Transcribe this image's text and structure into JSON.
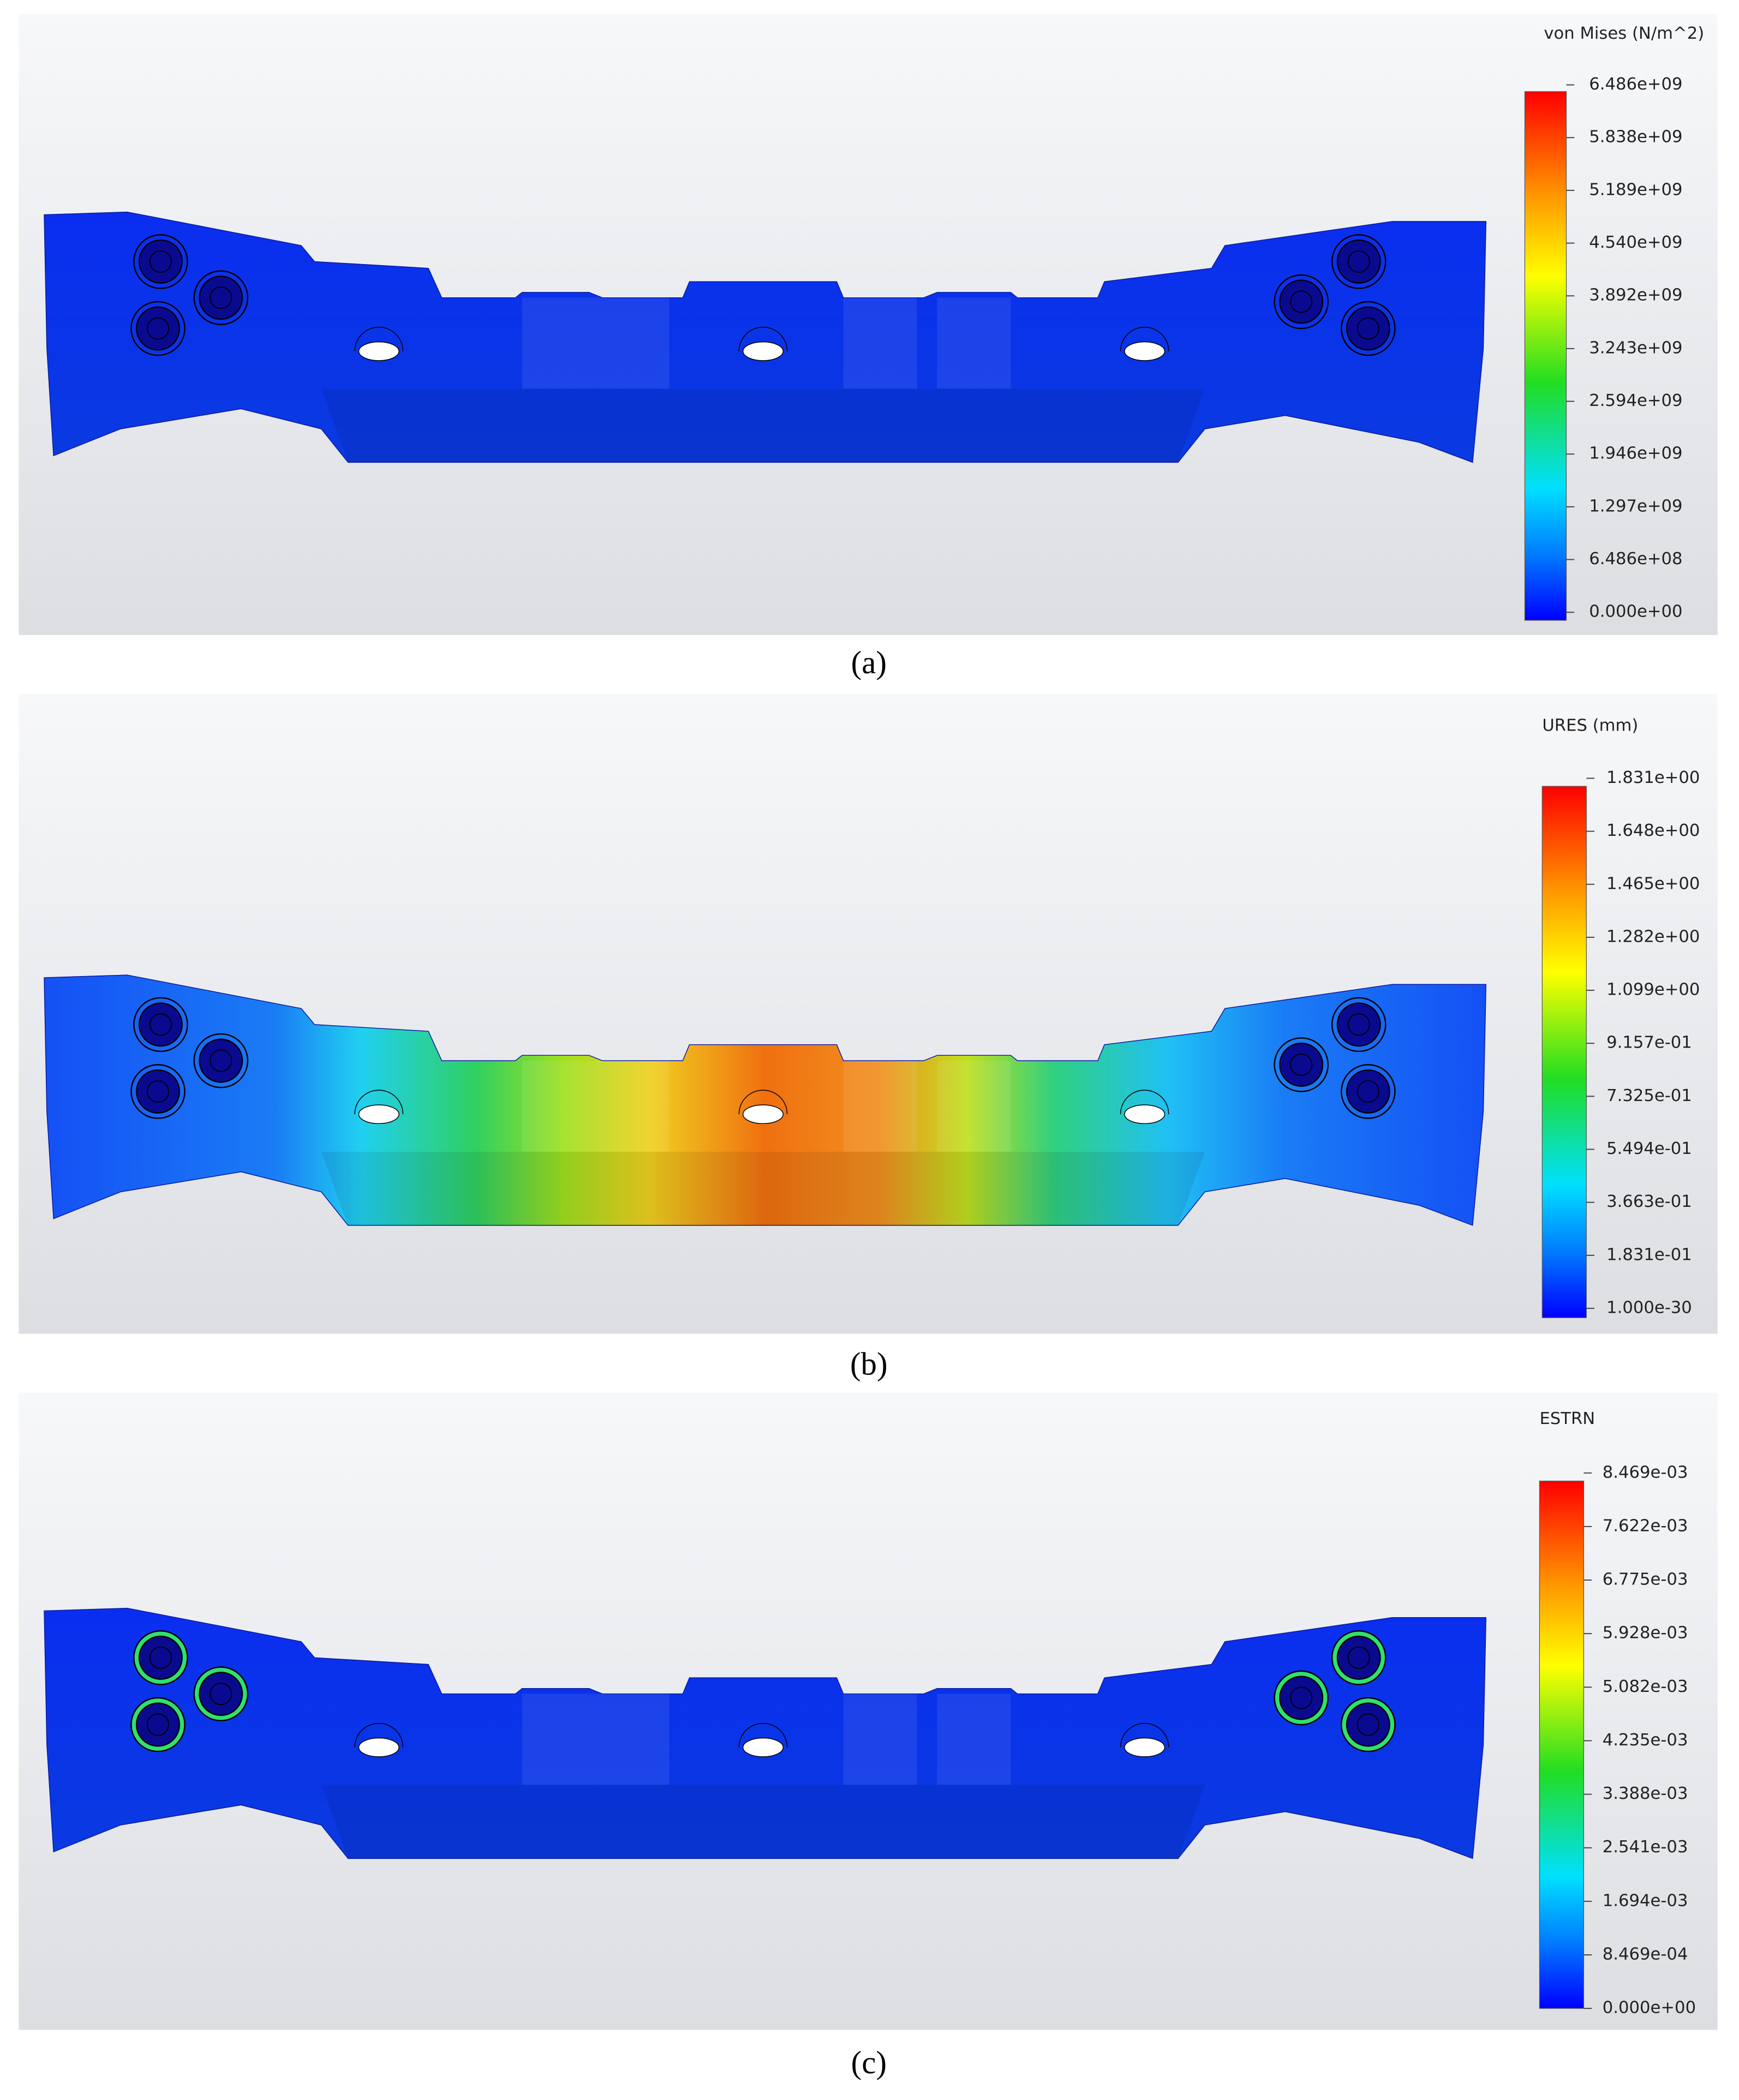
{
  "panels": [
    {
      "legend_title": "von Mises (N/m^2)",
      "legend_labels": [
        "6.486e+09",
        "5.838e+09",
        "5.189e+09",
        "4.540e+09",
        "3.892e+09",
        "3.243e+09",
        "2.594e+09",
        "1.946e+09",
        "1.297e+09",
        "6.486e+08",
        "0.000e+00"
      ],
      "caption": "(a)"
    },
    {
      "legend_title": "URES (mm)",
      "legend_labels": [
        "1.831e+00",
        "1.648e+00",
        "1.465e+00",
        "1.282e+00",
        "1.099e+00",
        "9.157e-01",
        "7.325e-01",
        "5.494e-01",
        "3.663e-01",
        "1.831e-01",
        "1.000e-30"
      ],
      "caption": "(b)"
    },
    {
      "legend_title": "ESTRN",
      "legend_labels": [
        "8.469e-03",
        "7.622e-03",
        "6.775e-03",
        "5.928e-03",
        "5.082e-03",
        "4.235e-03",
        "3.388e-03",
        "2.541e-03",
        "1.694e-03",
        "8.469e-04",
        "0.000e+00"
      ],
      "caption": "(c)"
    }
  ]
}
